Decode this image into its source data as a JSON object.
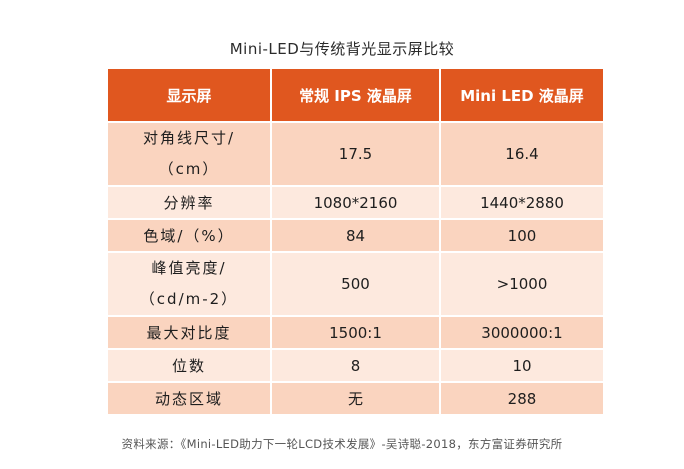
{
  "title": "Mini-LED与传统背光显示屏比较",
  "table": {
    "headers": [
      "显示屏",
      "常规 IPS 液晶屏",
      "Mini LED 液晶屏"
    ],
    "rows": [
      {
        "label_line1": "对角线尺寸/",
        "label_line2": "（cm）",
        "ips": "17.5",
        "mini": "16.4"
      },
      {
        "label": "分辨率",
        "ips": "1080*2160",
        "mini": "1440*2880"
      },
      {
        "label": "色域/（%）",
        "ips": "84",
        "mini": "100"
      },
      {
        "label_line1": "峰值亮度/",
        "label_line2": "（cd/m-2）",
        "ips": "500",
        "mini": ">1000"
      },
      {
        "label": "最大对比度",
        "ips": "1500:1",
        "mini": "3000000:1"
      },
      {
        "label": "位数",
        "ips": "8",
        "mini": "10"
      },
      {
        "label": "动态区域",
        "ips": "无",
        "mini": "288"
      }
    ]
  },
  "source": "资料来源：《Mini-LED助力下一轮LCD技术发展》-吴诗聪-2018，东方富证券研究所",
  "colors": {
    "header_bg": "#e0571f",
    "row_dark": "#fad4bf",
    "row_light": "#fde9de"
  }
}
